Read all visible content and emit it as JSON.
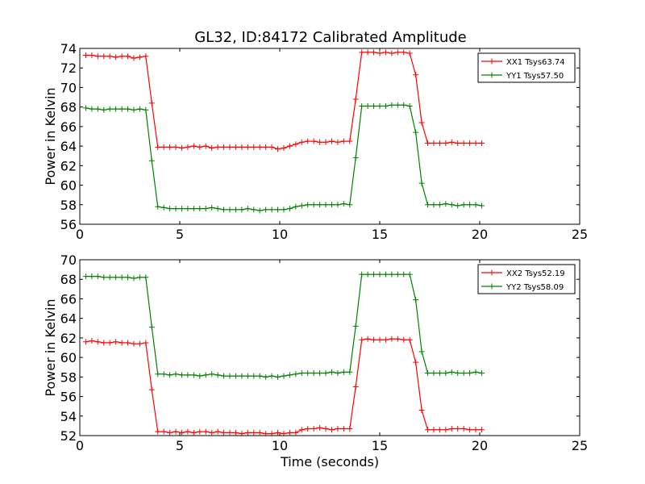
{
  "title": "GL32, ID:84172 Calibrated Amplitude",
  "chart_data": [
    {
      "type": "line",
      "title": "GL32, ID:84172 Calibrated Amplitude",
      "xlabel": "",
      "ylabel": "Power in Kelvin",
      "xlim": [
        0,
        25
      ],
      "ylim": [
        56,
        74
      ],
      "xticks": [
        0,
        5,
        10,
        15,
        20,
        25
      ],
      "yticks": [
        56,
        58,
        60,
        62,
        64,
        66,
        68,
        70,
        72,
        74
      ],
      "grid": false,
      "legend": "top-right",
      "x": [
        0.3,
        0.6,
        0.9,
        1.2,
        1.5,
        1.8,
        2.1,
        2.4,
        2.7,
        3.0,
        3.3,
        3.6,
        3.9,
        4.2,
        4.5,
        4.8,
        5.1,
        5.4,
        5.7,
        6.0,
        6.3,
        6.6,
        6.9,
        7.2,
        7.5,
        7.8,
        8.1,
        8.4,
        8.7,
        9.0,
        9.3,
        9.6,
        9.9,
        10.2,
        10.5,
        10.8,
        11.1,
        11.4,
        11.7,
        12.0,
        12.3,
        12.6,
        12.9,
        13.2,
        13.5,
        13.8,
        14.1,
        14.4,
        14.7,
        15.0,
        15.3,
        15.6,
        15.9,
        16.2,
        16.5,
        16.8,
        17.1,
        17.4,
        17.7,
        18.0,
        18.3,
        18.6,
        18.9,
        19.2,
        19.5,
        19.8,
        20.1
      ],
      "series": [
        {
          "name": "XX1 Tsys63.74",
          "color": "#ff0000",
          "values": [
            73.3,
            73.3,
            73.2,
            73.2,
            73.2,
            73.1,
            73.2,
            73.2,
            73.0,
            73.1,
            73.2,
            68.4,
            63.9,
            63.9,
            63.9,
            63.9,
            63.8,
            63.9,
            64.0,
            63.9,
            64.0,
            63.8,
            63.9,
            63.9,
            63.9,
            63.9,
            63.9,
            63.9,
            63.9,
            63.9,
            63.9,
            63.9,
            63.7,
            63.8,
            64.0,
            64.2,
            64.4,
            64.5,
            64.5,
            64.4,
            64.4,
            64.5,
            64.4,
            64.5,
            64.5,
            68.8,
            73.6,
            73.6,
            73.6,
            73.5,
            73.6,
            73.5,
            73.6,
            73.6,
            73.5,
            71.3,
            66.4,
            64.3,
            64.3,
            64.3,
            64.3,
            64.4,
            64.3,
            64.3,
            64.3,
            64.3,
            64.3
          ]
        },
        {
          "name": "YY1 Tsys57.50",
          "color": "#008000",
          "values": [
            67.9,
            67.8,
            67.8,
            67.7,
            67.8,
            67.8,
            67.8,
            67.8,
            67.7,
            67.8,
            67.7,
            62.5,
            57.8,
            57.7,
            57.6,
            57.6,
            57.6,
            57.6,
            57.6,
            57.6,
            57.6,
            57.7,
            57.6,
            57.5,
            57.5,
            57.5,
            57.5,
            57.6,
            57.5,
            57.4,
            57.5,
            57.5,
            57.5,
            57.5,
            57.6,
            57.8,
            57.9,
            58.0,
            58.0,
            58.0,
            58.0,
            58.0,
            58.0,
            58.1,
            58.0,
            62.8,
            68.1,
            68.1,
            68.1,
            68.1,
            68.1,
            68.2,
            68.2,
            68.2,
            68.1,
            65.4,
            60.2,
            58.0,
            58.0,
            58.0,
            58.1,
            58.0,
            57.9,
            58.0,
            58.0,
            58.0,
            57.9
          ]
        }
      ]
    },
    {
      "type": "line",
      "title": "",
      "xlabel": "Time (seconds)",
      "ylabel": "Power in Kelvin",
      "xlim": [
        0,
        25
      ],
      "ylim": [
        52,
        70
      ],
      "xticks": [
        0,
        5,
        10,
        15,
        20,
        25
      ],
      "yticks": [
        52,
        54,
        56,
        58,
        60,
        62,
        64,
        66,
        68,
        70
      ],
      "grid": false,
      "legend": "top-right",
      "x": [
        0.3,
        0.6,
        0.9,
        1.2,
        1.5,
        1.8,
        2.1,
        2.4,
        2.7,
        3.0,
        3.3,
        3.6,
        3.9,
        4.2,
        4.5,
        4.8,
        5.1,
        5.4,
        5.7,
        6.0,
        6.3,
        6.6,
        6.9,
        7.2,
        7.5,
        7.8,
        8.1,
        8.4,
        8.7,
        9.0,
        9.3,
        9.6,
        9.9,
        10.2,
        10.5,
        10.8,
        11.1,
        11.4,
        11.7,
        12.0,
        12.3,
        12.6,
        12.9,
        13.2,
        13.5,
        13.8,
        14.1,
        14.4,
        14.7,
        15.0,
        15.3,
        15.6,
        15.9,
        16.2,
        16.5,
        16.8,
        17.1,
        17.4,
        17.7,
        18.0,
        18.3,
        18.6,
        18.9,
        19.2,
        19.5,
        19.8,
        20.1
      ],
      "series": [
        {
          "name": "XX2 Tsys52.19",
          "color": "#ff0000",
          "values": [
            61.6,
            61.7,
            61.6,
            61.5,
            61.5,
            61.6,
            61.5,
            61.5,
            61.4,
            61.4,
            61.5,
            56.7,
            52.4,
            52.4,
            52.3,
            52.4,
            52.3,
            52.4,
            52.3,
            52.4,
            52.4,
            52.3,
            52.4,
            52.3,
            52.3,
            52.3,
            52.2,
            52.3,
            52.3,
            52.3,
            52.2,
            52.2,
            52.3,
            52.2,
            52.3,
            52.3,
            52.6,
            52.7,
            52.7,
            52.8,
            52.7,
            52.6,
            52.7,
            52.7,
            52.7,
            57.0,
            61.8,
            61.9,
            61.8,
            61.8,
            61.8,
            61.9,
            61.9,
            61.8,
            61.8,
            59.5,
            54.6,
            52.6,
            52.6,
            52.6,
            52.6,
            52.7,
            52.7,
            52.7,
            52.6,
            52.6,
            52.6
          ]
        },
        {
          "name": "YY2 Tsys58.09",
          "color": "#008000",
          "values": [
            68.3,
            68.3,
            68.3,
            68.2,
            68.2,
            68.2,
            68.2,
            68.2,
            68.1,
            68.2,
            68.2,
            63.1,
            58.3,
            58.3,
            58.2,
            58.3,
            58.2,
            58.2,
            58.2,
            58.1,
            58.2,
            58.3,
            58.2,
            58.1,
            58.1,
            58.1,
            58.1,
            58.1,
            58.1,
            58.1,
            58.0,
            58.1,
            58.0,
            58.1,
            58.2,
            58.3,
            58.4,
            58.4,
            58.4,
            58.4,
            58.4,
            58.5,
            58.4,
            58.5,
            58.5,
            63.2,
            68.5,
            68.5,
            68.5,
            68.5,
            68.5,
            68.5,
            68.5,
            68.5,
            68.5,
            65.9,
            60.6,
            58.4,
            58.4,
            58.4,
            58.4,
            58.5,
            58.4,
            58.4,
            58.4,
            58.5,
            58.4
          ]
        }
      ]
    }
  ]
}
